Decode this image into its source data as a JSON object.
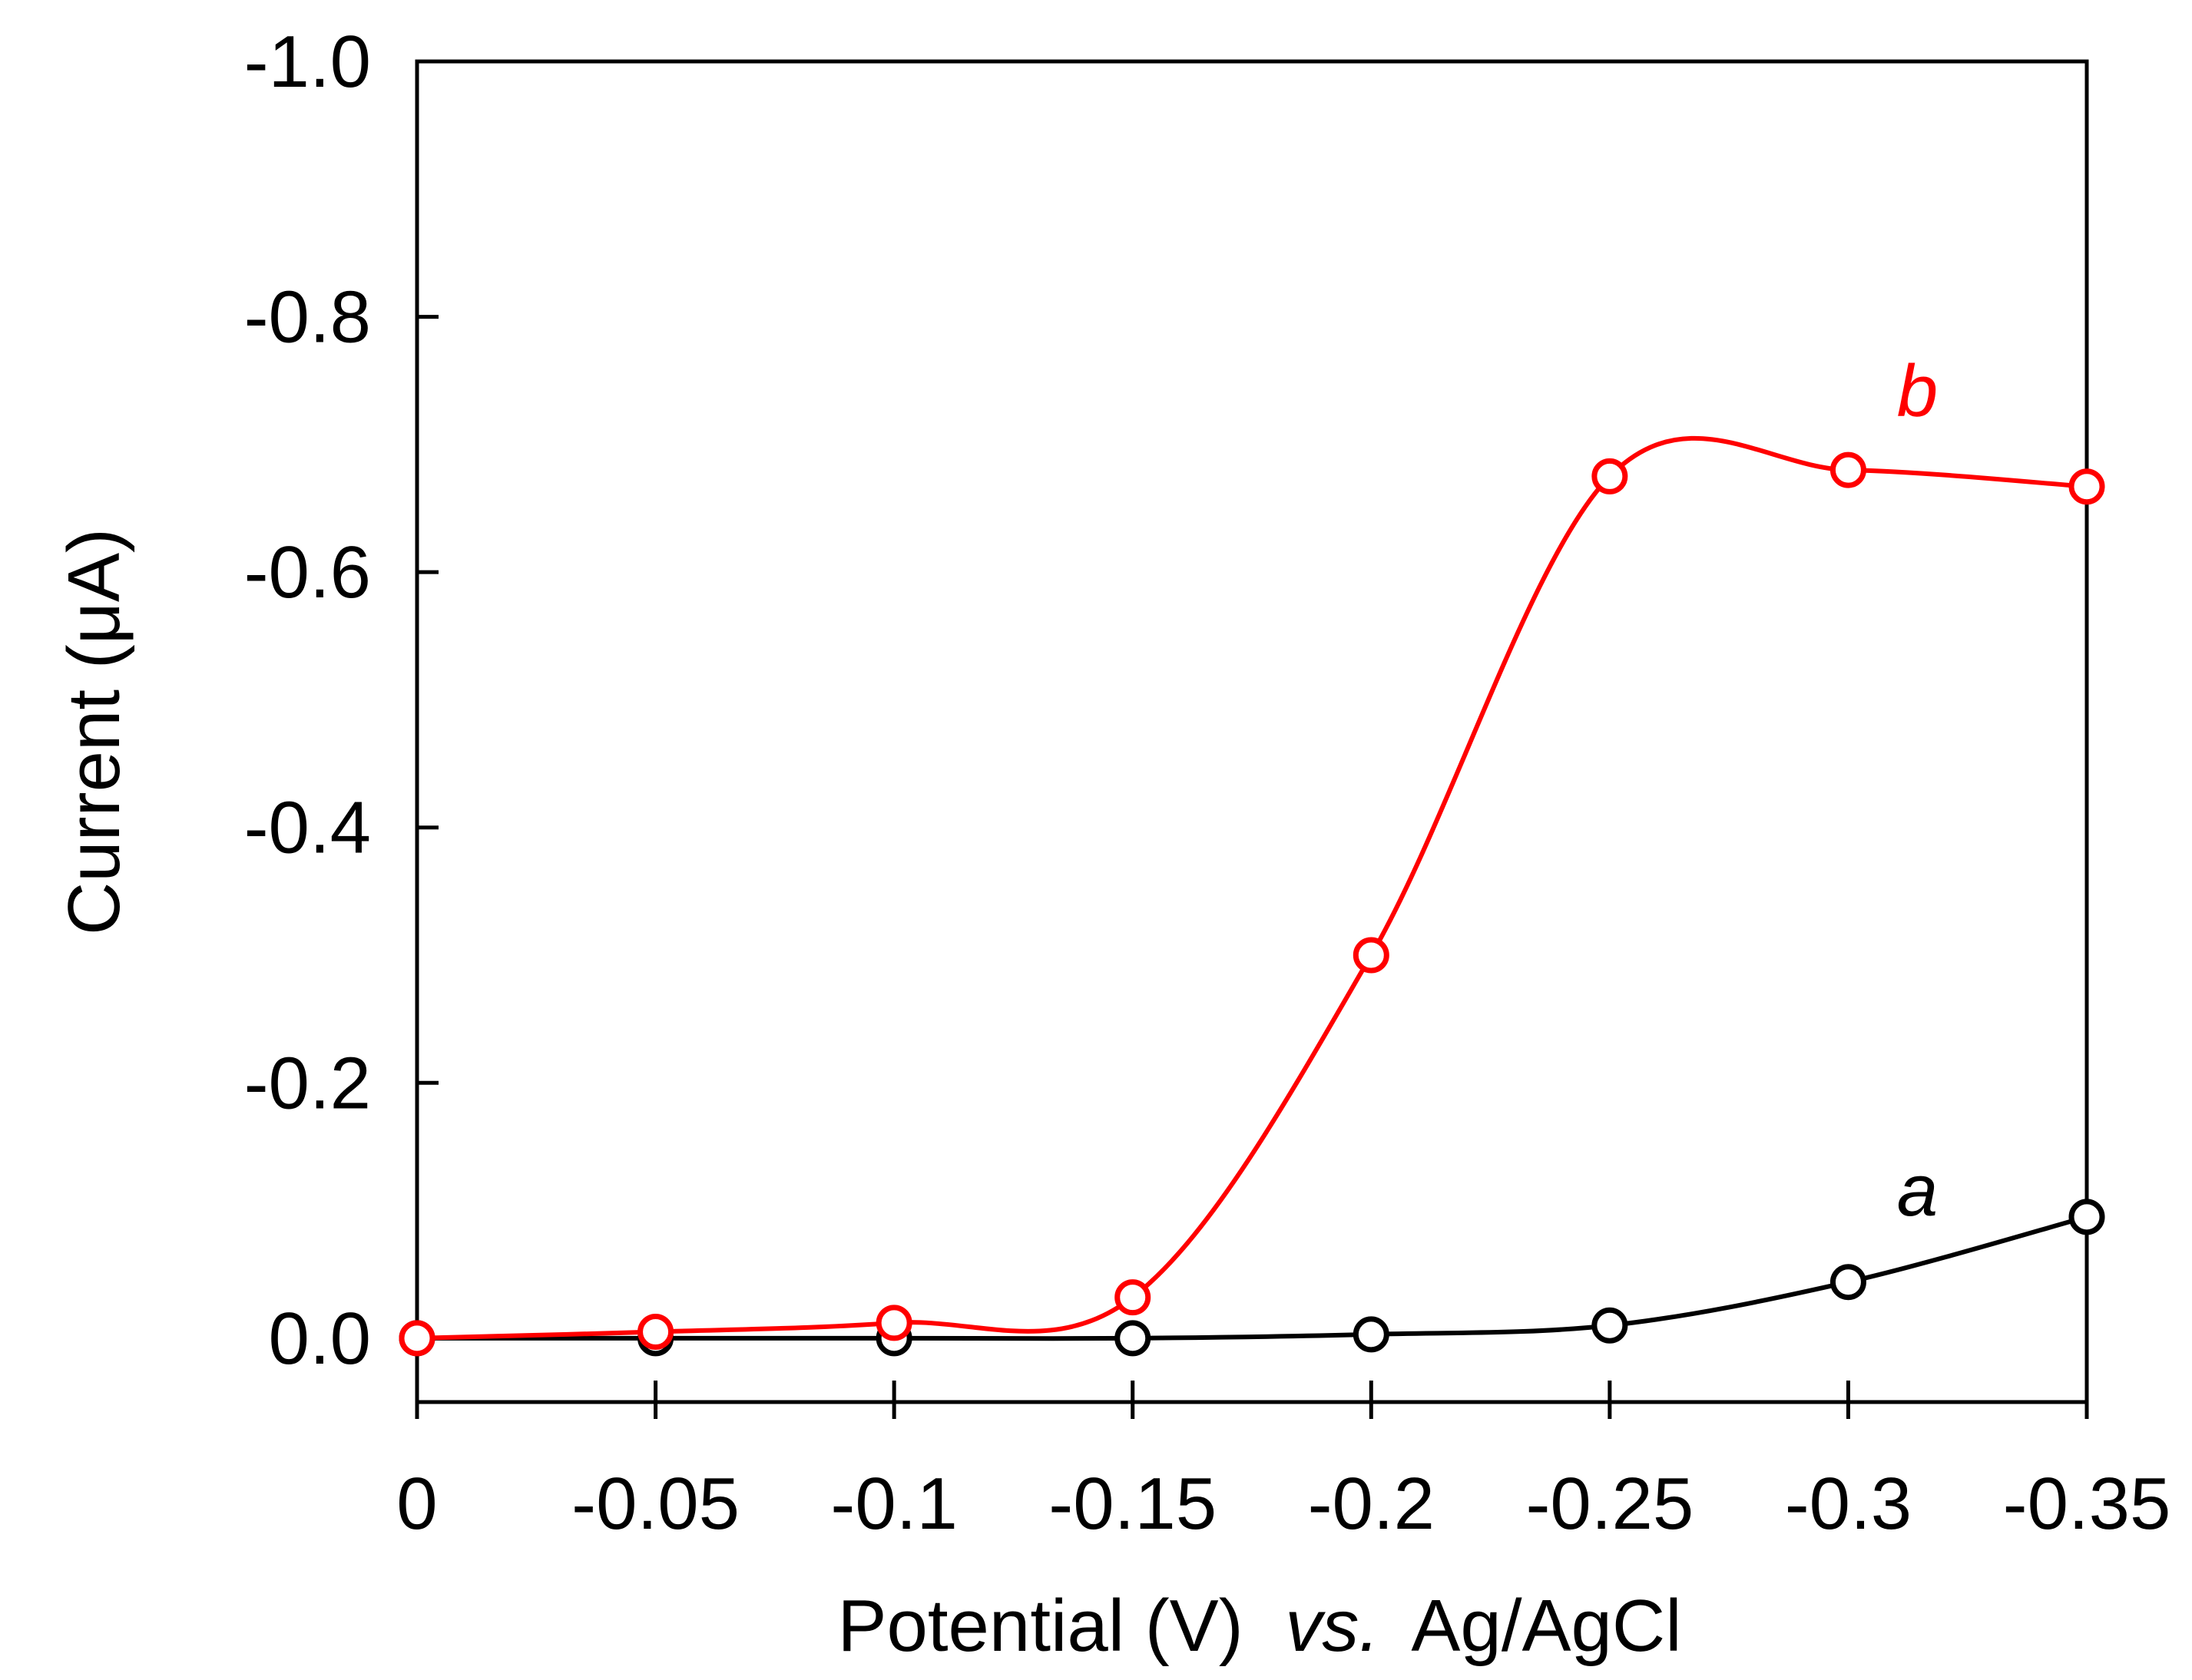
{
  "chart_data": {
    "type": "line",
    "xlabel_parts": [
      "Potential (V)",
      "vs.",
      "Ag/AgCl"
    ],
    "ylabel": "Current (μA)",
    "x": [
      0,
      -0.05,
      -0.1,
      -0.15,
      -0.2,
      -0.25,
      -0.3,
      -0.35
    ],
    "x_tick_labels": [
      "0",
      "-0.05",
      "-0.1",
      "-0.15",
      "-0.2",
      "-0.25",
      "-0.3",
      "-0.35"
    ],
    "xlim": [
      0,
      -0.35
    ],
    "y_ticks": [
      0.0,
      -0.2,
      -0.4,
      -0.6,
      -0.8,
      -1.0
    ],
    "y_tick_labels": [
      "0.0",
      "-0.2",
      "-0.4",
      "-0.6",
      "-0.8",
      "-1.0"
    ],
    "ylim": [
      0.05,
      -1.0
    ],
    "series": [
      {
        "name": "a",
        "label": "a",
        "color": "#000000",
        "values": [
          0.0,
          0.0,
          0.0,
          0.0,
          -0.003,
          -0.01,
          -0.044,
          -0.095
        ]
      },
      {
        "name": "b",
        "label": "b",
        "color": "#ff0000",
        "values": [
          0.0,
          -0.005,
          -0.012,
          -0.032,
          -0.3,
          -0.675,
          -0.68,
          -0.667
        ]
      }
    ]
  }
}
